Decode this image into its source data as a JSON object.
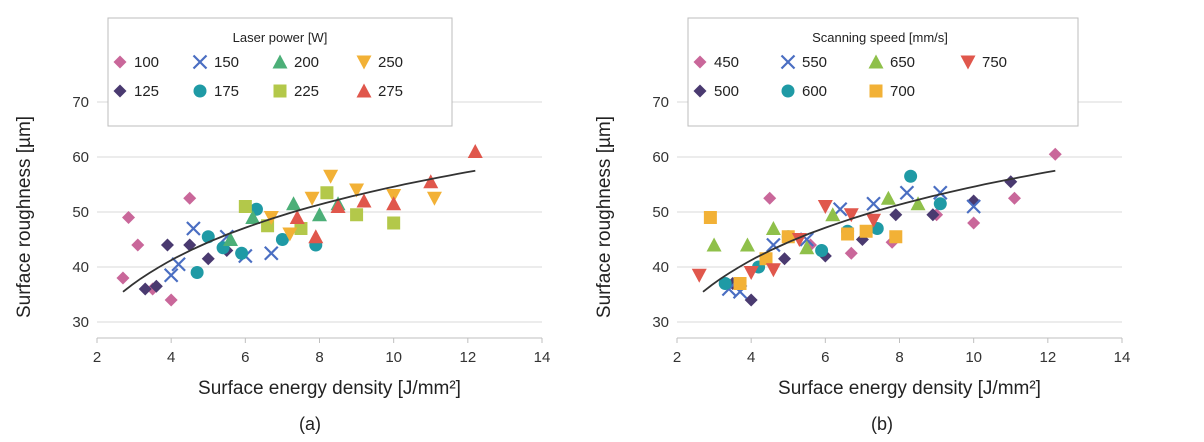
{
  "chart_data": [
    {
      "type": "scatter",
      "panel_label": "(a)",
      "xlabel": "Surface energy density [J/mm²]",
      "ylabel": "Surface roughness [µm]",
      "xlim": [
        2,
        14
      ],
      "ylim": [
        30,
        70
      ],
      "x_ticks": [
        "2",
        "4",
        "6",
        "8",
        "10",
        "12",
        "14"
      ],
      "y_ticks": [
        "30",
        "40",
        "50",
        "60",
        "70"
      ],
      "grid": "horizontal",
      "legend": {
        "title": "Laser power [W]",
        "placement": "top-left",
        "entries": [
          "100",
          "150",
          "200",
          "250",
          "125",
          "175",
          "225",
          "275"
        ]
      },
      "series": [
        {
          "name": "100",
          "color": "#c9679a",
          "marker": "diamond",
          "points": [
            [
              2.7,
              38
            ],
            [
              2.85,
              49
            ],
            [
              3.1,
              44
            ],
            [
              3.5,
              36
            ],
            [
              4.0,
              34
            ],
            [
              4.5,
              52.5
            ]
          ]
        },
        {
          "name": "125",
          "color": "#4a3a70",
          "marker": "diamond",
          "points": [
            [
              3.3,
              36
            ],
            [
              3.6,
              36.5
            ],
            [
              3.9,
              44
            ],
            [
              4.5,
              44
            ],
            [
              5.0,
              41.5
            ],
            [
              5.5,
              43
            ]
          ]
        },
        {
          "name": "150",
          "color": "#4a6ec2",
          "marker": "x",
          "points": [
            [
              4.0,
              38.5
            ],
            [
              4.2,
              40.5
            ],
            [
              4.6,
              47
            ],
            [
              5.5,
              45.5
            ],
            [
              6.0,
              42
            ],
            [
              6.7,
              42.5
            ]
          ]
        },
        {
          "name": "175",
          "color": "#1f9aa5",
          "marker": "circle",
          "points": [
            [
              4.7,
              39
            ],
            [
              5.0,
              45.5
            ],
            [
              5.4,
              43.5
            ],
            [
              5.9,
              42.5
            ],
            [
              6.3,
              50.5
            ],
            [
              7.0,
              45
            ],
            [
              7.9,
              44
            ]
          ]
        },
        {
          "name": "200",
          "color": "#4caf78",
          "marker": "triangle",
          "points": [
            [
              5.6,
              45
            ],
            [
              6.2,
              49
            ],
            [
              7.3,
              51.5
            ],
            [
              8.0,
              49.5
            ],
            [
              8.5,
              51.5
            ]
          ]
        },
        {
          "name": "225",
          "color": "#b3c84a",
          "marker": "square",
          "points": [
            [
              6.0,
              51
            ],
            [
              6.6,
              47.5
            ],
            [
              7.5,
              47
            ],
            [
              8.2,
              53.5
            ],
            [
              9.0,
              49.5
            ],
            [
              10.0,
              48
            ]
          ]
        },
        {
          "name": "250",
          "color": "#f2b136",
          "marker": "triangle-down",
          "points": [
            [
              6.7,
              49
            ],
            [
              7.2,
              46
            ],
            [
              7.8,
              52.5
            ],
            [
              8.3,
              56.5
            ],
            [
              9.0,
              54
            ],
            [
              10.0,
              53
            ],
            [
              11.1,
              52.5
            ]
          ]
        },
        {
          "name": "275",
          "color": "#e0574c",
          "marker": "triangle",
          "points": [
            [
              7.4,
              49
            ],
            [
              7.9,
              45.5
            ],
            [
              8.5,
              51
            ],
            [
              9.2,
              52
            ],
            [
              10.0,
              51.5
            ],
            [
              11.0,
              55.5
            ],
            [
              12.2,
              61
            ]
          ]
        }
      ],
      "trendline": {
        "type": "logarithmic",
        "x": [
          2.7,
          12.2
        ],
        "y_at_start": 35.5,
        "y_at_end": 57.5
      }
    },
    {
      "type": "scatter",
      "panel_label": "(b)",
      "xlabel": "Surface energy density [J/mm²]",
      "ylabel": "Surface roughness [µm]",
      "xlim": [
        2,
        14
      ],
      "ylim": [
        30,
        70
      ],
      "x_ticks": [
        "2",
        "4",
        "6",
        "8",
        "10",
        "12",
        "14"
      ],
      "y_ticks": [
        "30",
        "40",
        "50",
        "60",
        "70"
      ],
      "grid": "horizontal",
      "legend": {
        "title": "Scanning speed [mm/s]",
        "placement": "top-left",
        "entries": [
          "450",
          "550",
          "650",
          "750",
          "500",
          "600",
          "700"
        ]
      },
      "series": [
        {
          "name": "450",
          "color": "#c9679a",
          "marker": "diamond",
          "points": [
            [
              4.5,
              52.5
            ],
            [
              5.6,
              44
            ],
            [
              6.7,
              42.5
            ],
            [
              7.8,
              44.5
            ],
            [
              9.0,
              49.5
            ],
            [
              10.0,
              48
            ],
            [
              11.1,
              52.5
            ],
            [
              12.2,
              60.5
            ]
          ]
        },
        {
          "name": "500",
          "color": "#4a3a70",
          "marker": "diamond",
          "points": [
            [
              3.5,
              37
            ],
            [
              4.0,
              34
            ],
            [
              4.9,
              41.5
            ],
            [
              6.0,
              42
            ],
            [
              7.0,
              45
            ],
            [
              7.9,
              49.5
            ],
            [
              8.9,
              49.5
            ],
            [
              10.0,
              52
            ],
            [
              11.0,
              55.5
            ]
          ]
        },
        {
          "name": "550",
          "color": "#4a6ec2",
          "marker": "x",
          "points": [
            [
              3.4,
              36
            ],
            [
              3.7,
              35.5
            ],
            [
              4.6,
              44
            ],
            [
              5.5,
              45
            ],
            [
              6.4,
              50.5
            ],
            [
              7.3,
              51.5
            ],
            [
              8.2,
              53.5
            ],
            [
              9.1,
              53.5
            ],
            [
              10.0,
              51
            ]
          ]
        },
        {
          "name": "600",
          "color": "#1f9aa5",
          "marker": "circle",
          "points": [
            [
              3.3,
              37
            ],
            [
              4.2,
              40
            ],
            [
              5.0,
              45.5
            ],
            [
              5.9,
              43
            ],
            [
              6.6,
              46.5
            ],
            [
              7.4,
              47
            ],
            [
              8.3,
              56.5
            ],
            [
              9.1,
              51.5
            ]
          ]
        },
        {
          "name": "650",
          "color": "#8fc04a",
          "marker": "triangle",
          "points": [
            [
              3.0,
              44
            ],
            [
              3.9,
              44
            ],
            [
              4.6,
              47
            ],
            [
              5.5,
              43.5
            ],
            [
              6.2,
              49.5
            ],
            [
              7.7,
              52.5
            ],
            [
              8.5,
              51.5
            ]
          ]
        },
        {
          "name": "700",
          "color": "#f2b136",
          "marker": "square",
          "points": [
            [
              2.9,
              49
            ],
            [
              3.7,
              37
            ],
            [
              4.4,
              41.5
            ],
            [
              5.0,
              45.5
            ],
            [
              6.6,
              46
            ],
            [
              7.1,
              46.5
            ],
            [
              7.9,
              45.5
            ]
          ]
        },
        {
          "name": "750",
          "color": "#e0574c",
          "marker": "triangle-down",
          "points": [
            [
              2.6,
              38.5
            ],
            [
              4.0,
              39
            ],
            [
              4.6,
              39.5
            ],
            [
              5.3,
              45
            ],
            [
              6.0,
              51
            ],
            [
              6.7,
              49.5
            ],
            [
              7.3,
              48.5
            ]
          ]
        }
      ],
      "trendline": {
        "type": "logarithmic",
        "x": [
          2.7,
          12.2
        ],
        "y_at_start": 35.5,
        "y_at_end": 57.5
      }
    }
  ]
}
